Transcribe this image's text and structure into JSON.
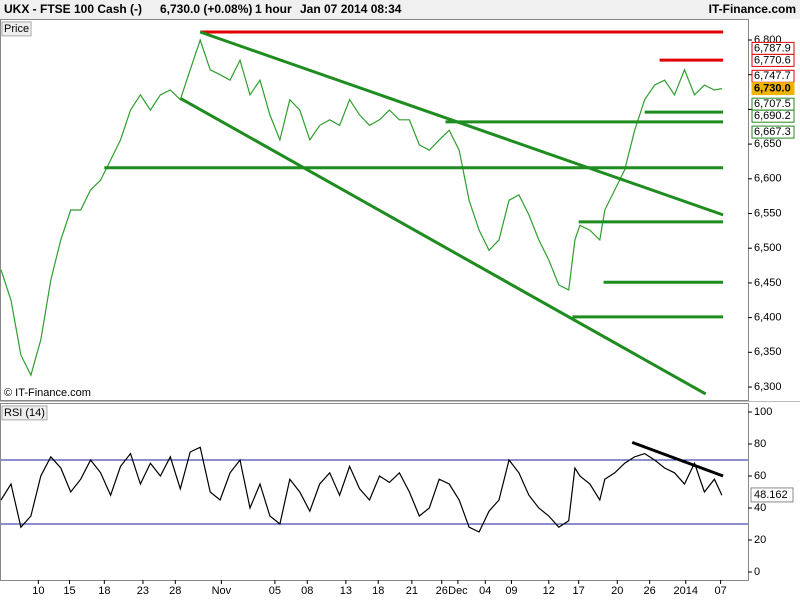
{
  "header": {
    "symbol": "UKX - FTSE 100 Cash (-)",
    "quote": "6,730.0 (+0.08%)",
    "interval": "1 hour",
    "timestamp": "Jan 07 2014 08:34",
    "brand": "IT-Finance.com"
  },
  "chart_data": [
    {
      "type": "line",
      "panel_label": "Price",
      "copyright": "© IT-Finance.com",
      "xlim": [
        0,
        600
      ],
      "ylim": [
        6281.3,
        6828.8
      ],
      "yticks": [
        {
          "value": 6300,
          "label": "6,300"
        },
        {
          "value": 6350,
          "label": "6,350"
        },
        {
          "value": 6400,
          "label": "6,400"
        },
        {
          "value": 6450,
          "label": "6,450"
        },
        {
          "value": 6500,
          "label": "6,500"
        },
        {
          "value": 6550,
          "label": "6,550"
        },
        {
          "value": 6600,
          "label": "6,600"
        },
        {
          "value": 6650,
          "label": "6,650"
        },
        {
          "value": 6700,
          "label": "6,700"
        },
        {
          "value": 6750,
          "label": "6,750"
        },
        {
          "value": 6800,
          "label": "6,800"
        }
      ],
      "series": [
        {
          "color": "#2e9e2e",
          "x": [
            0,
            8,
            16,
            24,
            32,
            40,
            48,
            56,
            64,
            72,
            80,
            88,
            96,
            104,
            112,
            120,
            128,
            136,
            144,
            152,
            160,
            168,
            176,
            184,
            192,
            200,
            208,
            216,
            224,
            232,
            240,
            248,
            256,
            264,
            272,
            280,
            288,
            296,
            304,
            312,
            320,
            328,
            336,
            344,
            352,
            360,
            368,
            376,
            384,
            392,
            400,
            408,
            416,
            424,
            432,
            440,
            448,
            456,
            461,
            465,
            473,
            481,
            485,
            493,
            501,
            509,
            517,
            525,
            533,
            541,
            549,
            557,
            565,
            573,
            579
          ],
          "values": [
            6469,
            6425,
            6346,
            6317,
            6368,
            6454,
            6512,
            6555,
            6555,
            6584,
            6598,
            6627,
            6656,
            6699,
            6721,
            6699,
            6721,
            6728,
            6714,
            6757,
            6800,
            6757,
            6750,
            6742,
            6771,
            6721,
            6742,
            6692,
            6656,
            6714,
            6699,
            6656,
            6677,
            6685,
            6677,
            6714,
            6692,
            6677,
            6685,
            6699,
            6685,
            6685,
            6649,
            6641,
            6656,
            6670,
            6641,
            6569,
            6526,
            6497,
            6512,
            6569,
            6577,
            6548,
            6512,
            6483,
            6447,
            6440,
            6512,
            6533,
            6526,
            6512,
            6555,
            6584,
            6613,
            6670,
            6714,
            6735,
            6742,
            6721,
            6757,
            6721,
            6735,
            6728,
            6730
          ]
        }
      ],
      "trendlines": [
        {
          "color": "#e00000",
          "x": [
            160,
            580
          ],
          "y": [
            6811.5,
            6811.5
          ]
        },
        {
          "color": "#e00000",
          "x": [
            529,
            580
          ],
          "y": [
            6771,
            6771
          ]
        },
        {
          "color": "#1e8c1e",
          "x": [
            160,
            580
          ],
          "y": [
            6811.5,
            6548
          ]
        },
        {
          "color": "#1e8c1e",
          "x": [
            144,
            566
          ],
          "y": [
            6716,
            6290
          ]
        },
        {
          "color": "#1e8c1e",
          "x": [
            83,
            580
          ],
          "y": [
            6616,
            6616
          ]
        },
        {
          "color": "#1e8c1e",
          "x": [
            357,
            580
          ],
          "y": [
            6682,
            6682
          ]
        },
        {
          "color": "#1e8c1e",
          "x": [
            517,
            580
          ],
          "y": [
            6696,
            6696
          ]
        },
        {
          "color": "#1e8c1e",
          "x": [
            464,
            580
          ],
          "y": [
            6538,
            6538
          ]
        },
        {
          "color": "#1e8c1e",
          "x": [
            484,
            580
          ],
          "y": [
            6451,
            6451
          ]
        },
        {
          "color": "#1e8c1e",
          "x": [
            459,
            580
          ],
          "y": [
            6401,
            6401
          ]
        }
      ],
      "level_labels": [
        {
          "value": 6787.9,
          "label": "6,787.9",
          "color": "#e00000"
        },
        {
          "value": 6770.6,
          "label": "6,770.6",
          "color": "#e00000"
        },
        {
          "value": 6747.7,
          "label": "6,747.7",
          "color": "#e00000"
        },
        {
          "value": 6730.0,
          "label": "6,730.0",
          "color": "#f0b400"
        },
        {
          "value": 6707.5,
          "label": "6,707.5",
          "color": "#1e8c1e"
        },
        {
          "value": 6690.2,
          "label": "6,690.2",
          "color": "#1e8c1e"
        },
        {
          "value": 6667.3,
          "label": "6,667.3",
          "color": "#1e8c1e"
        }
      ]
    },
    {
      "type": "line",
      "panel_label": "RSI (14)",
      "xlim": [
        0,
        600
      ],
      "ylim": [
        -5,
        105
      ],
      "yticks": [
        0,
        20,
        40,
        60,
        80,
        100
      ],
      "reference_lines": [
        30,
        70
      ],
      "reference_color": "#1c1c9c",
      "current_label": {
        "value": 48.162,
        "label": "48.162"
      },
      "series": [
        {
          "color": "#000000",
          "x": [
            0,
            8,
            16,
            24,
            32,
            40,
            48,
            56,
            64,
            72,
            80,
            88,
            96,
            104,
            112,
            120,
            128,
            136,
            144,
            152,
            160,
            168,
            176,
            184,
            192,
            200,
            208,
            216,
            224,
            232,
            240,
            248,
            256,
            264,
            272,
            280,
            288,
            296,
            304,
            312,
            320,
            328,
            336,
            344,
            352,
            360,
            368,
            376,
            384,
            392,
            400,
            408,
            416,
            424,
            432,
            440,
            448,
            456,
            461,
            465,
            473,
            481,
            485,
            493,
            501,
            509,
            517,
            525,
            533,
            541,
            549,
            557,
            565,
            573,
            579
          ],
          "values": [
            45,
            55,
            28,
            35,
            60,
            72,
            65,
            50,
            58,
            70,
            62,
            48,
            66,
            74,
            55,
            68,
            60,
            72,
            52,
            75,
            78,
            50,
            45,
            62,
            70,
            40,
            55,
            35,
            30,
            58,
            50,
            38,
            55,
            62,
            48,
            66,
            52,
            45,
            60,
            56,
            62,
            50,
            35,
            40,
            58,
            55,
            45,
            28,
            25,
            38,
            45,
            70,
            62,
            48,
            40,
            35,
            28,
            32,
            65,
            60,
            55,
            45,
            58,
            62,
            68,
            72,
            74,
            70,
            65,
            62,
            55,
            68,
            50,
            58,
            48
          ]
        }
      ],
      "trendlines": [
        {
          "color": "#000000",
          "x": [
            507,
            580
          ],
          "y": [
            81,
            60
          ]
        }
      ],
      "xticks": [
        {
          "value": 30,
          "label": "10"
        },
        {
          "value": 55,
          "label": "15"
        },
        {
          "value": 83,
          "label": "18"
        },
        {
          "value": 114,
          "label": "23"
        },
        {
          "value": 140,
          "label": "28"
        },
        {
          "value": 177,
          "label": "Nov"
        },
        {
          "value": 220,
          "label": "05"
        },
        {
          "value": 246,
          "label": "08"
        },
        {
          "value": 277,
          "label": "13"
        },
        {
          "value": 303,
          "label": "18"
        },
        {
          "value": 330,
          "label": "21"
        },
        {
          "value": 354,
          "label": "26"
        },
        {
          "value": 367,
          "label": "Dec"
        },
        {
          "value": 389,
          "label": "04"
        },
        {
          "value": 410,
          "label": "09"
        },
        {
          "value": 440,
          "label": "12"
        },
        {
          "value": 464,
          "label": "17"
        },
        {
          "value": 495,
          "label": "20"
        },
        {
          "value": 521,
          "label": "26"
        },
        {
          "value": 550,
          "label": "2014"
        },
        {
          "value": 578,
          "label": "07"
        }
      ]
    }
  ]
}
